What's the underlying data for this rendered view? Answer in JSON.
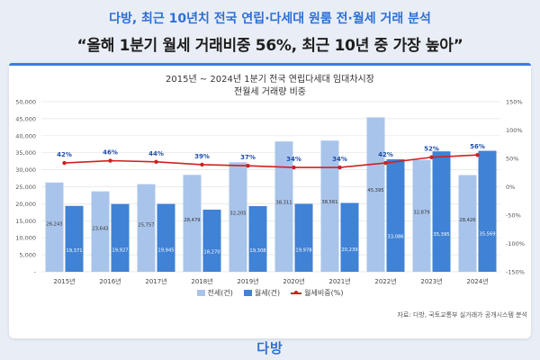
{
  "header": {
    "subtitle": "다방, 최근 10년치 전국 연립·다세대 원룸 전·월세 거래 분석",
    "title": "“올해 1분기 월세 거래비중 56%, 최근 10년 중 가장 높아”"
  },
  "source": "자료: 다방, 국토교통부 실거래가 공개시스템 분석",
  "logo_text": "다방",
  "colors": {
    "jeonse": "#a9c4ea",
    "wolse": "#3f82d6",
    "ratio": "#d0201e",
    "accent": "#2f6fd6",
    "background": "#e9eef6"
  },
  "chart_data": {
    "type": "bar",
    "title": "2015년 ~ 2024년 1분기 전국 연립다세대 임대차시장",
    "subtitle": "전월세 거래량 비중",
    "categories": [
      "2015년",
      "2016년",
      "2017년",
      "2018년",
      "2019년",
      "2020년",
      "2021년",
      "2022년",
      "2023년",
      "2024년"
    ],
    "series": [
      {
        "name": "전세(건)",
        "type": "bar",
        "values": [
          26243,
          23643,
          25757,
          28479,
          32205,
          38311,
          38561,
          45395,
          32879,
          28426
        ]
      },
      {
        "name": "월세(건)",
        "type": "bar",
        "values": [
          19371,
          19927,
          19945,
          18270,
          19308,
          19978,
          20239,
          33086,
          35395,
          35569
        ]
      },
      {
        "name": "월세비중(%)",
        "type": "line",
        "axis": "right",
        "values": [
          42,
          46,
          44,
          39,
          37,
          34,
          34,
          42,
          52,
          56
        ]
      }
    ],
    "value_labels": [
      "26,243",
      "19,371",
      "23,643",
      "19,927",
      "25,757",
      "19,945",
      "28,479",
      "18,270",
      "32,205",
      "19,308",
      "38,311",
      "19,978",
      "38,561",
      "20,239",
      "45,395",
      "33,086",
      "32,879",
      "35,395",
      "28,426",
      "35,569"
    ],
    "ratio_labels": [
      "42%",
      "46%",
      "44%",
      "39%",
      "37%",
      "34%",
      "34%",
      "42%",
      "52%",
      "56%"
    ],
    "y_left": {
      "min": 0,
      "max": 50000,
      "step": 5000,
      "ticks": [
        "-",
        "5,000",
        "10,000",
        "15,000",
        "20,000",
        "25,000",
        "30,000",
        "35,000",
        "40,000",
        "45,000",
        "50,000"
      ]
    },
    "y_right": {
      "min": -150,
      "max": 150,
      "step": 50,
      "ticks": [
        "-150%",
        "-100%",
        "-50%",
        "0%",
        "50%",
        "100%",
        "150%"
      ]
    },
    "grid": true,
    "legend_position": "bottom"
  }
}
